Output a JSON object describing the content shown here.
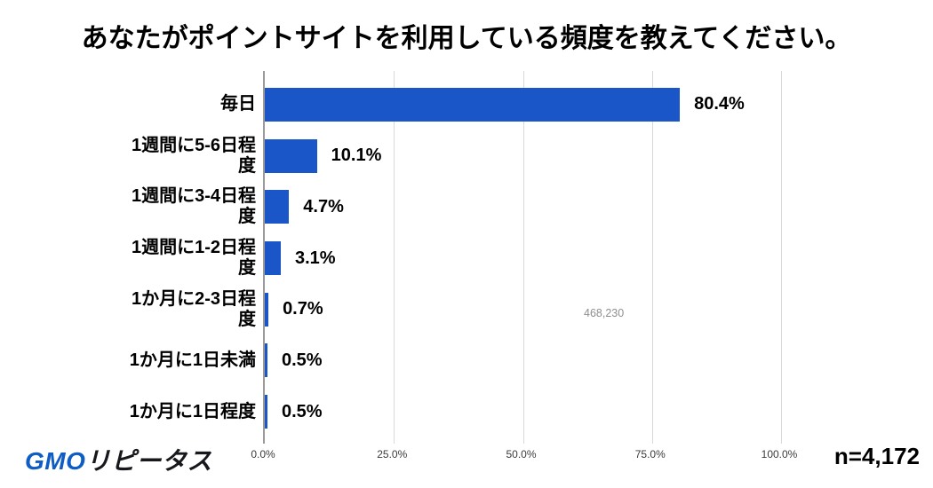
{
  "chart_data": {
    "type": "bar",
    "orientation": "horizontal",
    "title": "あなたがポイントサイトを利用している頻度を教えてください。",
    "categories": [
      "毎日",
      "1週間に5-6日程度",
      "1週間に3-4日程度",
      "1週間に1-2日程度",
      "1か月に2-3日程度",
      "1か月に1日未満",
      "1か月に1日程度"
    ],
    "display_labels": [
      "毎日",
      "1週間に5-6日程\n度",
      "1週間に3-4日程\n度",
      "1週間に1-2日程\n度",
      "1か月に2-3日程\n度",
      "1か月に1日未満",
      "1か月に1日程度"
    ],
    "values": [
      80.4,
      10.1,
      4.7,
      3.1,
      0.7,
      0.5,
      0.5
    ],
    "value_labels": [
      "80.4%",
      "10.1%",
      "4.7%",
      "3.1%",
      "0.7%",
      "0.5%",
      "0.5%"
    ],
    "x_ticks": [
      {
        "label": "0.0%",
        "value": 0
      },
      {
        "label": "25.0%",
        "value": 25
      },
      {
        "label": "50.0%",
        "value": 50
      },
      {
        "label": "75.0%",
        "value": 75
      },
      {
        "label": "100.0%",
        "value": 100
      }
    ],
    "xlim": [
      0,
      100
    ],
    "grid": true,
    "legend": "none",
    "bar_color": "#1a56c8",
    "axis_color": "#9a9a9a",
    "gridline_color": "#d9d9d9",
    "annotation": "468,230"
  },
  "footer": {
    "logo_gmo": "GMO",
    "logo_service": "リピータス",
    "sample_size": "n=4,172"
  }
}
